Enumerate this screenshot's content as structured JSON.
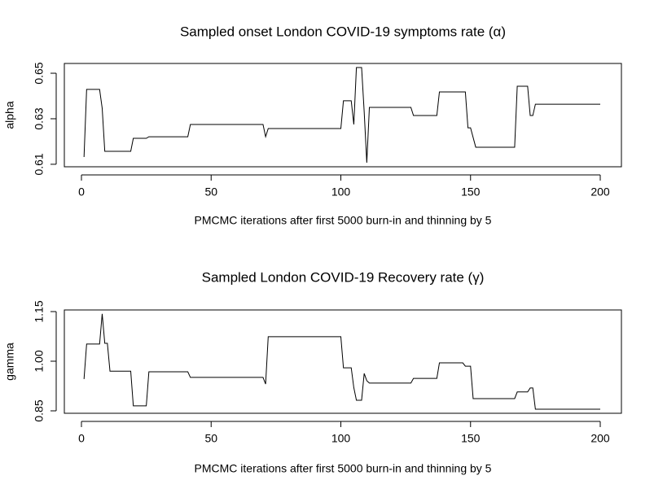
{
  "chart_data": [
    {
      "type": "line",
      "title": "Sampled onset London COVID-19 symptoms rate (α)",
      "xlabel": "PMCMC iterations after first 5000 burn-in and thinning by 5",
      "ylabel": "alpha",
      "x": [
        1,
        2,
        7,
        8,
        9,
        19,
        20,
        25,
        26,
        41,
        42,
        70,
        71,
        72,
        100,
        101,
        104,
        105,
        106,
        108,
        109,
        110,
        111,
        127,
        128,
        137,
        138,
        148,
        149,
        150,
        152,
        167,
        168,
        172,
        173,
        174,
        175,
        200
      ],
      "values": [
        0.6132,
        0.6429,
        0.6429,
        0.6346,
        0.6157,
        0.6157,
        0.6214,
        0.6214,
        0.6221,
        0.6221,
        0.6275,
        0.6275,
        0.6221,
        0.6257,
        0.6257,
        0.6379,
        0.6379,
        0.6275,
        0.6525,
        0.6525,
        0.633,
        0.6107,
        0.635,
        0.635,
        0.6314,
        0.6314,
        0.6418,
        0.6418,
        0.626,
        0.626,
        0.6175,
        0.6175,
        0.6443,
        0.6443,
        0.6314,
        0.6314,
        0.6364,
        0.6364
      ],
      "color": "#000000",
      "xlim": [
        -6.59,
        208.16
      ],
      "xticks": [
        0,
        50,
        100,
        150,
        200
      ],
      "ylim": [
        0.6089,
        0.6543
      ],
      "yticks": [
        0.61,
        0.63,
        0.65
      ]
    },
    {
      "type": "line",
      "title": "Sampled London COVID-19 Recovery rate (γ)",
      "xlabel": "PMCMC iterations after first 5000 burn-in and thinning by 5",
      "ylabel": "gamma",
      "x": [
        1,
        2,
        7,
        8,
        9,
        10,
        11,
        19,
        20,
        25,
        26,
        41,
        42,
        70,
        71,
        72,
        100,
        101,
        104,
        105,
        106,
        108,
        109,
        110,
        111,
        127,
        128,
        137,
        138,
        147,
        148,
        150,
        151,
        167,
        168,
        172,
        173,
        174,
        175,
        200
      ],
      "values": [
        0.946,
        1.052,
        1.052,
        1.143,
        1.054,
        1.054,
        0.97,
        0.97,
        0.865,
        0.865,
        0.968,
        0.968,
        0.951,
        0.951,
        0.931,
        1.074,
        1.074,
        0.98,
        0.98,
        0.92,
        0.882,
        0.882,
        0.963,
        0.941,
        0.934,
        0.934,
        0.948,
        0.948,
        0.995,
        0.995,
        0.985,
        0.985,
        0.887,
        0.887,
        0.907,
        0.907,
        0.919,
        0.919,
        0.855,
        0.855
      ],
      "color": "#000000",
      "xlim": [
        -6.59,
        208.16
      ],
      "xticks": [
        0,
        50,
        100,
        150,
        200
      ],
      "ylim": [
        0.8426,
        1.1549
      ],
      "yticks": [
        0.85,
        {
          "value": 1,
          "label": "1.00"
        },
        1.15
      ]
    }
  ]
}
